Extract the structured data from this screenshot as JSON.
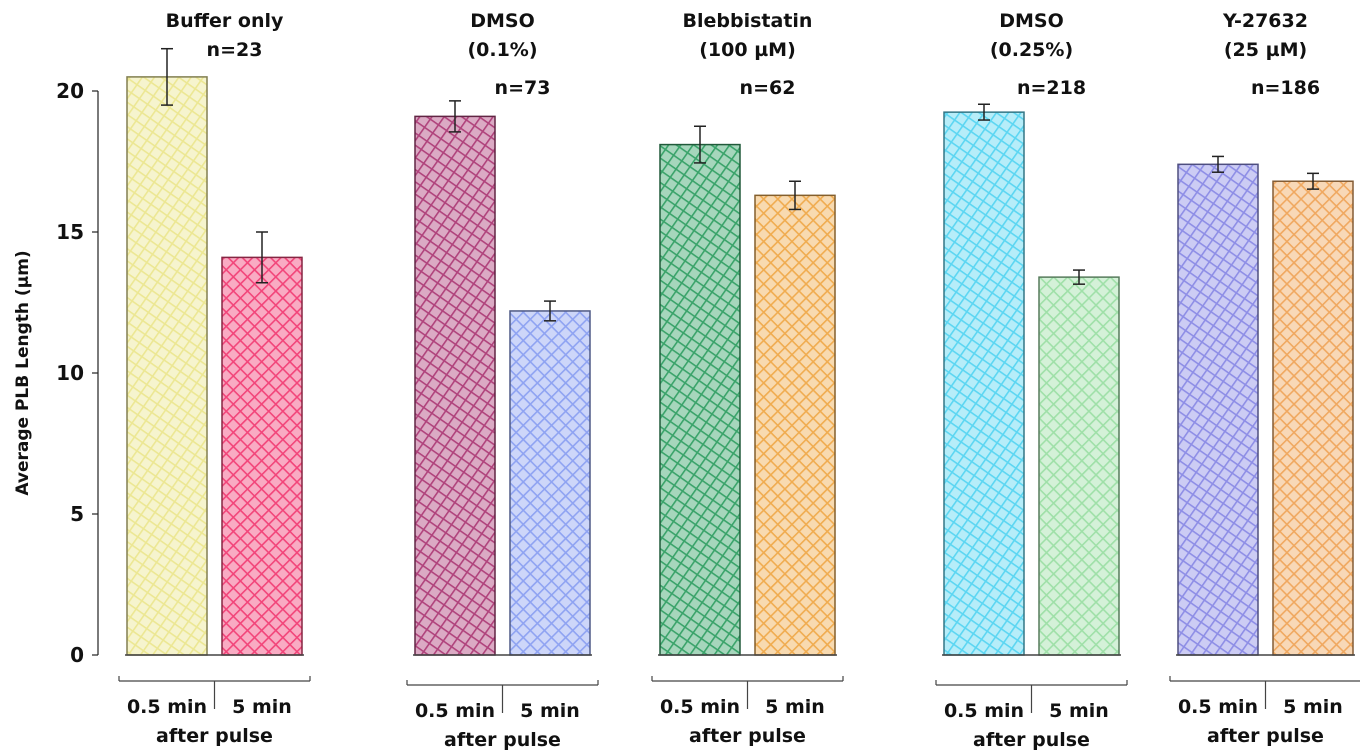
{
  "chart_data": {
    "type": "bar",
    "ylabel": "Average PLB Length (µm)",
    "ylim": [
      0,
      20
    ],
    "yticks": [
      0,
      5,
      10,
      15,
      20
    ],
    "grid": false,
    "groups": [
      {
        "label_lines": [
          "Buffer only"
        ],
        "n_label": "n=23",
        "x_labels": [
          "0.5 min",
          "5 min"
        ],
        "x_sublabel": "after pulse",
        "bars": [
          {
            "x": "0.5 min",
            "value": 20.5,
            "error": 1.0,
            "color": "#ece793"
          },
          {
            "x": "5 min",
            "value": 14.1,
            "error": 0.9,
            "color": "#f2457a"
          }
        ]
      },
      {
        "label_lines": [
          "DMSO",
          "(0.1%)"
        ],
        "n_label": "n=73",
        "x_labels": [
          "0.5 min",
          "5 min"
        ],
        "x_sublabel": "after pulse",
        "bars": [
          {
            "x": "0.5 min",
            "value": 19.1,
            "error": 0.55,
            "color": "#b0437c"
          },
          {
            "x": "5 min",
            "value": 12.2,
            "error": 0.35,
            "color": "#8fa3f2"
          }
        ]
      },
      {
        "label_lines": [
          "Blebbistatin",
          "(100 µM)"
        ],
        "n_label": "n=62",
        "x_labels": [
          "0.5 min",
          "5 min"
        ],
        "x_sublabel": "after pulse",
        "bars": [
          {
            "x": "0.5 min",
            "value": 18.1,
            "error": 0.65,
            "color": "#3aa36a"
          },
          {
            "x": "5 min",
            "value": 16.3,
            "error": 0.5,
            "color": "#f0ac50"
          }
        ]
      },
      {
        "label_lines": [
          "DMSO",
          "(0.25%)"
        ],
        "n_label": "n=218",
        "x_labels": [
          "0.5 min",
          "5 min"
        ],
        "x_sublabel": "after pulse",
        "bars": [
          {
            "x": "0.5 min",
            "value": 19.25,
            "error": 0.28,
            "color": "#5cd6f2"
          },
          {
            "x": "5 min",
            "value": 13.4,
            "error": 0.25,
            "color": "#9fe0a8"
          }
        ]
      },
      {
        "label_lines": [
          "Y-27632",
          "(25 µM)"
        ],
        "n_label": "n=186",
        "x_labels": [
          "0.5 min",
          "5 min"
        ],
        "x_sublabel": "after pulse",
        "bars": [
          {
            "x": "0.5 min",
            "value": 17.4,
            "error": 0.28,
            "color": "#8e8ee6"
          },
          {
            "x": "5 min",
            "value": 16.8,
            "error": 0.28,
            "color": "#f0a860"
          }
        ]
      }
    ]
  }
}
